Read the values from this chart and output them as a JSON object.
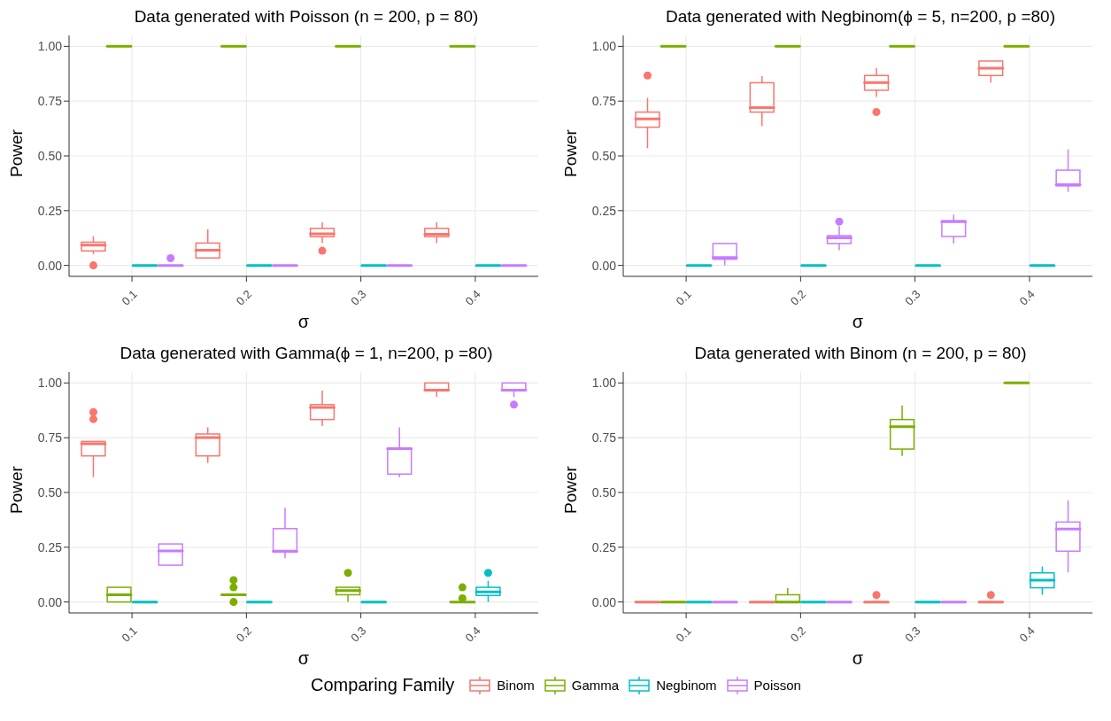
{
  "chart_data": [
    {
      "type": "box",
      "title": "Data generated with Poisson (n = 200, p = 80)",
      "xlabel": "σ",
      "ylabel": "Power",
      "categories": [
        "0.1",
        "0.2",
        "0.3",
        "0.4"
      ],
      "ylim": [
        -0.05,
        1.05
      ],
      "yticks": [
        {
          "value": 0,
          "label": "0.00"
        },
        {
          "value": 0.25,
          "label": "0.25"
        },
        {
          "value": 0.5,
          "label": "0.50"
        },
        {
          "value": 0.75,
          "label": "0.75"
        },
        {
          "value": 1,
          "label": "1.00"
        }
      ],
      "grid": true,
      "legend": "bottom",
      "legend_title": "Comparing Family",
      "series": [
        {
          "name": "Binom",
          "color": "#f8766d",
          "boxes": [
            {
              "low": 0.052,
              "q1": 0.066,
              "median": 0.093,
              "q3": 0.106,
              "high": 0.133,
              "outliers": [
                0
              ]
            },
            {
              "low": 0.034,
              "q1": 0.034,
              "median": 0.069,
              "q3": 0.102,
              "high": 0.165
            },
            {
              "low": 0.102,
              "q1": 0.131,
              "median": 0.144,
              "q3": 0.169,
              "high": 0.197,
              "outliers": [
                0.067
              ]
            },
            {
              "low": 0.102,
              "q1": 0.131,
              "median": 0.142,
              "q3": 0.169,
              "high": 0.197
            }
          ]
        },
        {
          "name": "Gamma",
          "color": "#7cae00",
          "boxes": [
            {
              "low": 1,
              "q1": 1,
              "median": 1,
              "q3": 1,
              "high": 1
            },
            {
              "low": 1,
              "q1": 1,
              "median": 1,
              "q3": 1,
              "high": 1
            },
            {
              "low": 1,
              "q1": 1,
              "median": 1,
              "q3": 1,
              "high": 1
            },
            {
              "low": 1,
              "q1": 1,
              "median": 1,
              "q3": 1,
              "high": 1
            }
          ]
        },
        {
          "name": "Negbinom",
          "color": "#00bfc4",
          "boxes": [
            {
              "low": 0,
              "q1": 0,
              "median": 0,
              "q3": 0,
              "high": 0
            },
            {
              "low": 0,
              "q1": 0,
              "median": 0,
              "q3": 0,
              "high": 0
            },
            {
              "low": 0,
              "q1": 0,
              "median": 0,
              "q3": 0,
              "high": 0
            },
            {
              "low": 0,
              "q1": 0,
              "median": 0,
              "q3": 0,
              "high": 0
            }
          ]
        },
        {
          "name": "Poisson",
          "color": "#c77cff",
          "boxes": [
            {
              "low": 0,
              "q1": 0,
              "median": 0,
              "q3": 0,
              "high": 0,
              "outliers": [
                0.033
              ]
            },
            {
              "low": 0,
              "q1": 0,
              "median": 0,
              "q3": 0,
              "high": 0
            },
            {
              "low": 0,
              "q1": 0,
              "median": 0,
              "q3": 0,
              "high": 0
            },
            {
              "low": 0,
              "q1": 0,
              "median": 0,
              "q3": 0,
              "high": 0
            }
          ]
        }
      ]
    },
    {
      "type": "box",
      "title": "Data generated with Negbinom(ϕ = 5, n=200, p =80)",
      "xlabel": "σ",
      "ylabel": "Power",
      "categories": [
        "0.1",
        "0.2",
        "0.3",
        "0.4"
      ],
      "ylim": [
        -0.05,
        1.05
      ],
      "yticks": [
        {
          "value": 0,
          "label": "0.00"
        },
        {
          "value": 0.25,
          "label": "0.25"
        },
        {
          "value": 0.5,
          "label": "0.50"
        },
        {
          "value": 0.75,
          "label": "0.75"
        },
        {
          "value": 1,
          "label": "1.00"
        }
      ],
      "grid": true,
      "series": [
        {
          "color": "#f8766d",
          "boxes": [
            {
              "low": 0.535,
              "q1": 0.631,
              "median": 0.669,
              "q3": 0.7,
              "high": 0.765,
              "outliers": [
                0.867
              ]
            },
            {
              "low": 0.636,
              "q1": 0.7,
              "median": 0.72,
              "q3": 0.834,
              "high": 0.864
            },
            {
              "low": 0.769,
              "q1": 0.8,
              "median": 0.835,
              "q3": 0.867,
              "high": 0.9,
              "outliers": [
                0.7
              ]
            },
            {
              "low": 0.835,
              "q1": 0.867,
              "median": 0.9,
              "q3": 0.933,
              "high": 0.933
            }
          ]
        },
        {
          "color": "#7cae00",
          "boxes": [
            {
              "low": 1,
              "q1": 1,
              "median": 1,
              "q3": 1,
              "high": 1
            },
            {
              "low": 1,
              "q1": 1,
              "median": 1,
              "q3": 1,
              "high": 1
            },
            {
              "low": 1,
              "q1": 1,
              "median": 1,
              "q3": 1,
              "high": 1
            },
            {
              "low": 1,
              "q1": 1,
              "median": 1,
              "q3": 1,
              "high": 1
            }
          ]
        },
        {
          "color": "#00bfc4",
          "boxes": [
            {
              "low": 0,
              "q1": 0,
              "median": 0,
              "q3": 0,
              "high": 0
            },
            {
              "low": 0,
              "q1": 0,
              "median": 0,
              "q3": 0,
              "high": 0
            },
            {
              "low": 0,
              "q1": 0,
              "median": 0,
              "q3": 0,
              "high": 0
            },
            {
              "low": 0,
              "q1": 0,
              "median": 0,
              "q3": 0,
              "high": 0
            }
          ]
        },
        {
          "color": "#c77cff",
          "boxes": [
            {
              "low": 0,
              "q1": 0.028,
              "median": 0.036,
              "q3": 0.1,
              "high": 0.1
            },
            {
              "low": 0.069,
              "q1": 0.1,
              "median": 0.126,
              "q3": 0.136,
              "high": 0.18,
              "outliers": [
                0.2
              ]
            },
            {
              "low": 0.1,
              "q1": 0.132,
              "median": 0.2,
              "q3": 0.204,
              "high": 0.232
            },
            {
              "low": 0.336,
              "q1": 0.363,
              "median": 0.369,
              "q3": 0.435,
              "high": 0.53
            }
          ]
        }
      ]
    },
    {
      "type": "box",
      "title": "Data generated with Gamma(ϕ = 1, n=200, p =80)",
      "xlabel": "σ",
      "ylabel": "Power",
      "categories": [
        "0.1",
        "0.2",
        "0.3",
        "0.4"
      ],
      "ylim": [
        -0.05,
        1.05
      ],
      "yticks": [
        {
          "value": 0,
          "label": "0.00"
        },
        {
          "value": 0.25,
          "label": "0.25"
        },
        {
          "value": 0.5,
          "label": "0.50"
        },
        {
          "value": 0.75,
          "label": "0.75"
        },
        {
          "value": 1,
          "label": "1.00"
        }
      ],
      "grid": true,
      "series": [
        {
          "color": "#f8766d",
          "boxes": [
            {
              "low": 0.57,
              "q1": 0.667,
              "median": 0.722,
              "q3": 0.733,
              "high": 0.733,
              "outliers": [
                0.835,
                0.867
              ]
            },
            {
              "low": 0.635,
              "q1": 0.667,
              "median": 0.751,
              "q3": 0.767,
              "high": 0.797
            },
            {
              "low": 0.803,
              "q1": 0.833,
              "median": 0.888,
              "q3": 0.901,
              "high": 0.965
            },
            {
              "low": 0.936,
              "q1": 0.967,
              "median": 0.967,
              "q3": 1,
              "high": 1
            }
          ]
        },
        {
          "color": "#7cae00",
          "boxes": [
            {
              "low": 0,
              "q1": 0,
              "median": 0.033,
              "q3": 0.067,
              "high": 0.067
            },
            {
              "low": 0.033,
              "q1": 0.033,
              "median": 0.033,
              "q3": 0.033,
              "high": 0.033,
              "outliers": [
                0,
                0.067,
                0.1
              ]
            },
            {
              "low": 0,
              "q1": 0.033,
              "median": 0.052,
              "q3": 0.067,
              "high": 0.067,
              "outliers": [
                0.133
              ]
            },
            {
              "low": 0,
              "q1": 0,
              "median": 0,
              "q3": 0,
              "high": 0,
              "outliers": [
                0.017,
                0.067
              ]
            }
          ]
        },
        {
          "color": "#00bfc4",
          "boxes": [
            {
              "low": 0,
              "q1": 0,
              "median": 0,
              "q3": 0,
              "high": 0
            },
            {
              "low": 0,
              "q1": 0,
              "median": 0,
              "q3": 0,
              "high": 0
            },
            {
              "low": 0,
              "q1": 0,
              "median": 0,
              "q3": 0,
              "high": 0
            },
            {
              "low": 0,
              "q1": 0.03,
              "median": 0.046,
              "q3": 0.067,
              "high": 0.097,
              "outliers": [
                0.133
              ]
            }
          ]
        },
        {
          "color": "#c77cff",
          "boxes": [
            {
              "low": 0.168,
              "q1": 0.168,
              "median": 0.233,
              "q3": 0.265,
              "high": 0.265
            },
            {
              "low": 0.2,
              "q1": 0.228,
              "median": 0.232,
              "q3": 0.335,
              "high": 0.43
            },
            {
              "low": 0.57,
              "q1": 0.584,
              "median": 0.7,
              "q3": 0.703,
              "high": 0.797
            },
            {
              "low": 0.936,
              "q1": 0.967,
              "median": 0.967,
              "q3": 1,
              "high": 1,
              "outliers": [
                0.901
              ]
            }
          ]
        }
      ]
    },
    {
      "type": "box",
      "title": "Data generated with Binom (n = 200, p = 80)",
      "xlabel": "σ",
      "ylabel": "Power",
      "categories": [
        "0.1",
        "0.2",
        "0.3",
        "0.4"
      ],
      "ylim": [
        -0.05,
        1.05
      ],
      "yticks": [
        {
          "value": 0,
          "label": "0.00"
        },
        {
          "value": 0.25,
          "label": "0.25"
        },
        {
          "value": 0.5,
          "label": "0.50"
        },
        {
          "value": 0.75,
          "label": "0.75"
        },
        {
          "value": 1,
          "label": "1.00"
        }
      ],
      "grid": true,
      "series": [
        {
          "color": "#f8766d",
          "boxes": [
            {
              "low": 0,
              "q1": 0,
              "median": 0,
              "q3": 0,
              "high": 0
            },
            {
              "low": 0,
              "q1": 0,
              "median": 0,
              "q3": 0,
              "high": 0
            },
            {
              "low": 0,
              "q1": 0,
              "median": 0,
              "q3": 0,
              "high": 0,
              "outliers": [
                0.032
              ]
            },
            {
              "low": 0,
              "q1": 0,
              "median": 0,
              "q3": 0,
              "high": 0,
              "outliers": [
                0.032
              ]
            }
          ]
        },
        {
          "color": "#7cae00",
          "boxes": [
            {
              "low": 0,
              "q1": 0,
              "median": 0,
              "q3": 0,
              "high": 0
            },
            {
              "low": 0,
              "q1": 0,
              "median": 0,
              "q3": 0.033,
              "high": 0.064
            },
            {
              "low": 0.667,
              "q1": 0.698,
              "median": 0.8,
              "q3": 0.833,
              "high": 0.897
            },
            {
              "low": 1,
              "q1": 1,
              "median": 1,
              "q3": 1,
              "high": 1
            }
          ]
        },
        {
          "color": "#00bfc4",
          "boxes": [
            {
              "low": 0,
              "q1": 0,
              "median": 0,
              "q3": 0,
              "high": 0
            },
            {
              "low": 0,
              "q1": 0,
              "median": 0,
              "q3": 0,
              "high": 0
            },
            {
              "low": 0,
              "q1": 0,
              "median": 0,
              "q3": 0,
              "high": 0
            },
            {
              "low": 0.033,
              "q1": 0.065,
              "median": 0.1,
              "q3": 0.133,
              "high": 0.162
            }
          ]
        },
        {
          "color": "#c77cff",
          "boxes": [
            {
              "low": 0,
              "q1": 0,
              "median": 0,
              "q3": 0,
              "high": 0
            },
            {
              "low": 0,
              "q1": 0,
              "median": 0,
              "q3": 0,
              "high": 0
            },
            {
              "low": 0,
              "q1": 0,
              "median": 0,
              "q3": 0,
              "high": 0
            },
            {
              "low": 0.135,
              "q1": 0.232,
              "median": 0.333,
              "q3": 0.365,
              "high": 0.464
            }
          ]
        }
      ]
    }
  ]
}
